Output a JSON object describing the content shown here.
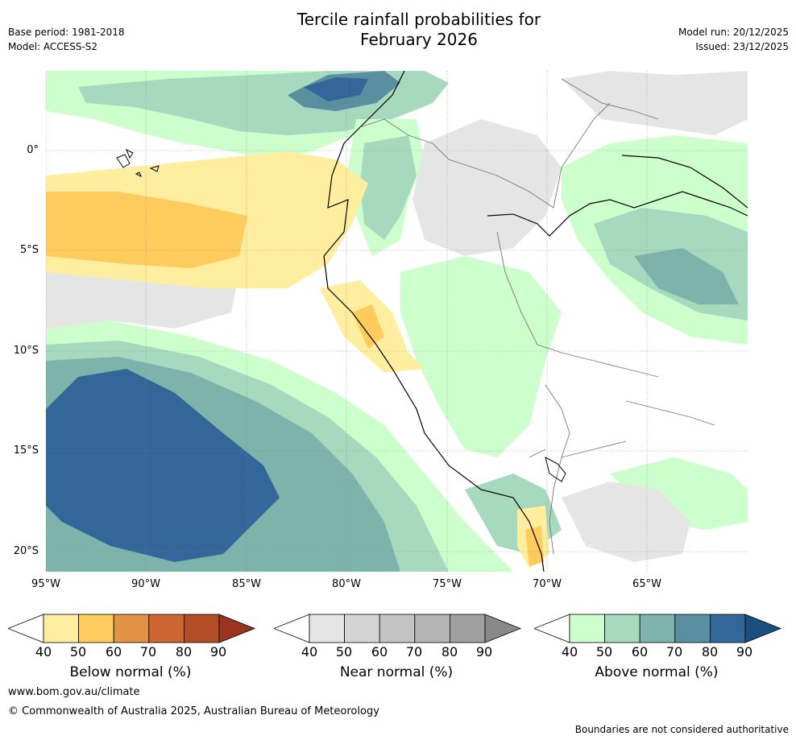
{
  "title": {
    "line1": "Tercile rainfall probabilities for",
    "line2": "February 2026"
  },
  "meta": {
    "base_period": "Base period: 1981-2018",
    "model": "Model: ACCESS-S2",
    "model_run": "Model run: 20/12/2025",
    "issued": "Issued: 23/12/2025"
  },
  "map": {
    "lat_labels": [
      "0°",
      "5°S",
      "10°S",
      "15°S",
      "20°S"
    ],
    "lon_labels": [
      "95°W",
      "90°W",
      "85°W",
      "80°W",
      "75°W",
      "70°W",
      "65°W"
    ]
  },
  "legend": {
    "ticks": [
      "40",
      "50",
      "60",
      "70",
      "80",
      "90"
    ],
    "below": {
      "label": "Below normal (%)",
      "colors": [
        "#ffffff",
        "#ffeda0",
        "#fecc5c",
        "#e09245",
        "#cc6633",
        "#b34d26",
        "#9a3420"
      ]
    },
    "near": {
      "label": "Near normal (%)",
      "colors": [
        "#ffffff",
        "#e5e5e5",
        "#d4d4d4",
        "#c4c4c4",
        "#b4b4b4",
        "#a0a0a0",
        "#888888"
      ]
    },
    "above": {
      "label": "Above normal (%)",
      "colors": [
        "#ffffff",
        "#ccffcc",
        "#a6d9bd",
        "#7eb3ab",
        "#5a8fa0",
        "#336699",
        "#1a4d80"
      ]
    }
  },
  "footer": {
    "url": "www.bom.gov.au/climate",
    "copyright": "© Commonwealth of Australia 2025, Australian Bureau of Meteorology",
    "disclaimer": "Boundaries are not considered authoritative"
  }
}
